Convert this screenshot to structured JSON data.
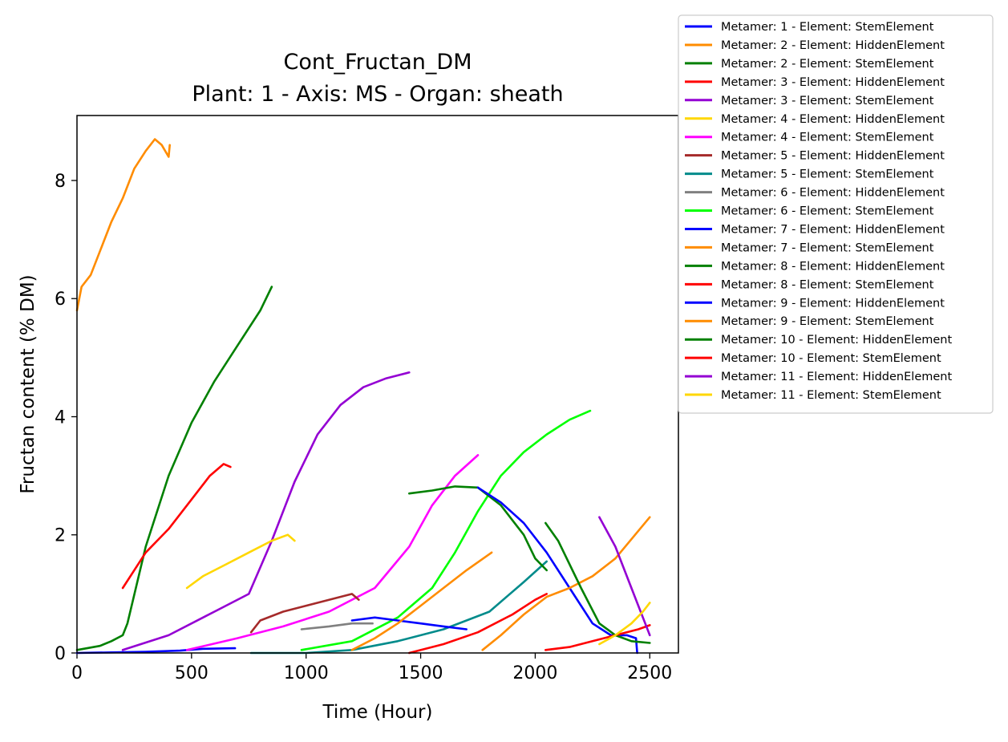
{
  "chart_data": {
    "type": "line",
    "title": "Cont_Fructan_DM",
    "subtitle": "Plant: 1 - Axis: MS - Organ: sheath",
    "xlabel": "Time (Hour)",
    "ylabel": "Fructan content (% DM)",
    "xlim": [
      0,
      2625
    ],
    "ylim": [
      0,
      9.1
    ],
    "xticks": [
      0,
      500,
      1000,
      1500,
      2000,
      2500
    ],
    "yticks": [
      0,
      2,
      4,
      6,
      8
    ],
    "grid": false,
    "legend_position": "outside-top-right",
    "series": [
      {
        "name": "Metamer: 1 - Element: StemElement",
        "color": "#0000ff",
        "x": [
          0,
          150,
          300,
          450,
          550,
          690
        ],
        "y": [
          0,
          0.01,
          0.02,
          0.04,
          0.07,
          0.08
        ]
      },
      {
        "name": "Metamer: 2 - Element: HiddenElement",
        "color": "#ff8c00",
        "x": [
          0,
          20,
          60,
          100,
          150,
          200,
          250,
          300,
          340,
          370,
          400,
          405
        ],
        "y": [
          5.8,
          6.2,
          6.4,
          6.8,
          7.3,
          7.7,
          8.2,
          8.5,
          8.7,
          8.6,
          8.4,
          8.6
        ]
      },
      {
        "name": "Metamer: 2 - Element: StemElement",
        "color": "#008000",
        "x": [
          0,
          100,
          150,
          200,
          220,
          300,
          400,
          500,
          600,
          700,
          800,
          850
        ],
        "y": [
          0.05,
          0.12,
          0.2,
          0.3,
          0.5,
          1.8,
          3.0,
          3.9,
          4.6,
          5.2,
          5.8,
          6.2
        ]
      },
      {
        "name": "Metamer: 3 - Element: HiddenElement",
        "color": "#ff0000",
        "x": [
          200,
          250,
          300,
          400,
          500,
          580,
          640,
          670
        ],
        "y": [
          1.1,
          1.4,
          1.7,
          2.1,
          2.6,
          3.0,
          3.2,
          3.15
        ]
      },
      {
        "name": "Metamer: 3 - Element: StemElement",
        "color": "#9400d3",
        "x": [
          200,
          400,
          600,
          750,
          850,
          950,
          1050,
          1150,
          1250,
          1350,
          1450
        ],
        "y": [
          0.05,
          0.3,
          0.7,
          1.0,
          1.9,
          2.9,
          3.7,
          4.2,
          4.5,
          4.65,
          4.75
        ]
      },
      {
        "name": "Metamer: 4 - Element: HiddenElement",
        "color": "#ffd700",
        "x": [
          480,
          550,
          650,
          750,
          850,
          920,
          950
        ],
        "y": [
          1.1,
          1.3,
          1.5,
          1.7,
          1.9,
          2.0,
          1.9
        ]
      },
      {
        "name": "Metamer: 4 - Element: StemElement",
        "color": "#ff00ff",
        "x": [
          480,
          700,
          900,
          1100,
          1300,
          1450,
          1550,
          1650,
          1750
        ],
        "y": [
          0.05,
          0.25,
          0.45,
          0.7,
          1.1,
          1.8,
          2.5,
          3.0,
          3.35
        ]
      },
      {
        "name": "Metamer: 5 - Element: HiddenElement",
        "color": "#a52a2a",
        "x": [
          760,
          800,
          900,
          1000,
          1100,
          1200,
          1230
        ],
        "y": [
          0.35,
          0.55,
          0.7,
          0.8,
          0.9,
          1.0,
          0.9
        ]
      },
      {
        "name": "Metamer: 5 - Element: StemElement",
        "color": "#008b8b",
        "x": [
          760,
          1000,
          1200,
          1400,
          1600,
          1800,
          1950,
          2050
        ],
        "y": [
          0,
          0,
          0.05,
          0.2,
          0.4,
          0.7,
          1.2,
          1.55
        ]
      },
      {
        "name": "Metamer: 6 - Element: HiddenElement",
        "color": "#808080",
        "x": [
          980,
          1100,
          1200,
          1290
        ],
        "y": [
          0.4,
          0.45,
          0.5,
          0.5
        ]
      },
      {
        "name": "Metamer: 6 - Element: StemElement",
        "color": "#00ff00",
        "x": [
          980,
          1200,
          1400,
          1550,
          1650,
          1750,
          1850,
          1950,
          2050,
          2150,
          2240
        ],
        "y": [
          0.05,
          0.2,
          0.6,
          1.1,
          1.7,
          2.4,
          3.0,
          3.4,
          3.7,
          3.95,
          4.1
        ]
      },
      {
        "name": "Metamer: 7 - Element: HiddenElement",
        "color": "#0000ff",
        "x": [
          1200,
          1300,
          1400,
          1500,
          1600,
          1700
        ],
        "y": [
          0.55,
          0.6,
          0.55,
          0.5,
          0.45,
          0.4
        ]
      },
      {
        "name": "Metamer: 7 - Element: StemElement",
        "color": "#ff8c00",
        "x": [
          1200,
          1300,
          1400,
          1500,
          1600,
          1700,
          1810
        ],
        "y": [
          0.05,
          0.25,
          0.5,
          0.8,
          1.1,
          1.4,
          1.7
        ]
      },
      {
        "name": "Metamer: 8 - Element: HiddenElement",
        "color": "#008000",
        "x": [
          1450,
          1550,
          1650,
          1750,
          1850,
          1950,
          2000,
          2050
        ],
        "y": [
          2.7,
          2.75,
          2.82,
          2.8,
          2.5,
          2.0,
          1.6,
          1.4
        ]
      },
      {
        "name": "Metamer: 8 - Element: StemElement",
        "color": "#ff0000",
        "x": [
          1450,
          1600,
          1750,
          1900,
          2000,
          2050
        ],
        "y": [
          0,
          0.15,
          0.35,
          0.65,
          0.9,
          1.0
        ]
      },
      {
        "name": "Metamer: 9 - Element: HiddenElement",
        "color": "#0000ff",
        "x": [
          1750,
          1850,
          1950,
          2050,
          2150,
          2250,
          2330,
          2400,
          2440,
          2445
        ],
        "y": [
          2.8,
          2.55,
          2.2,
          1.7,
          1.1,
          0.5,
          0.3,
          0.3,
          0.25,
          0
        ]
      },
      {
        "name": "Metamer: 9 - Element: StemElement",
        "color": "#ff8c00",
        "x": [
          1770,
          1850,
          1950,
          2050,
          2150,
          2250,
          2350,
          2500
        ],
        "y": [
          0.05,
          0.3,
          0.65,
          0.95,
          1.1,
          1.3,
          1.6,
          2.3
        ]
      },
      {
        "name": "Metamer: 10 - Element: HiddenElement",
        "color": "#008000",
        "x": [
          2045,
          2100,
          2200,
          2280,
          2350,
          2420,
          2500
        ],
        "y": [
          2.2,
          1.9,
          1.1,
          0.5,
          0.3,
          0.2,
          0.17
        ]
      },
      {
        "name": "Metamer: 10 - Element: StemElement",
        "color": "#ff0000",
        "x": [
          2045,
          2150,
          2250,
          2350,
          2450,
          2500
        ],
        "y": [
          0.05,
          0.1,
          0.2,
          0.3,
          0.4,
          0.47
        ]
      },
      {
        "name": "Metamer: 11 - Element: HiddenElement",
        "color": "#9400d3",
        "x": [
          2280,
          2350,
          2420,
          2480,
          2500
        ],
        "y": [
          2.3,
          1.8,
          1.1,
          0.5,
          0.3
        ]
      },
      {
        "name": "Metamer: 11 - Element: StemElement",
        "color": "#ffd700",
        "x": [
          2280,
          2350,
          2420,
          2470,
          2500
        ],
        "y": [
          0.15,
          0.3,
          0.5,
          0.7,
          0.85
        ]
      }
    ]
  }
}
